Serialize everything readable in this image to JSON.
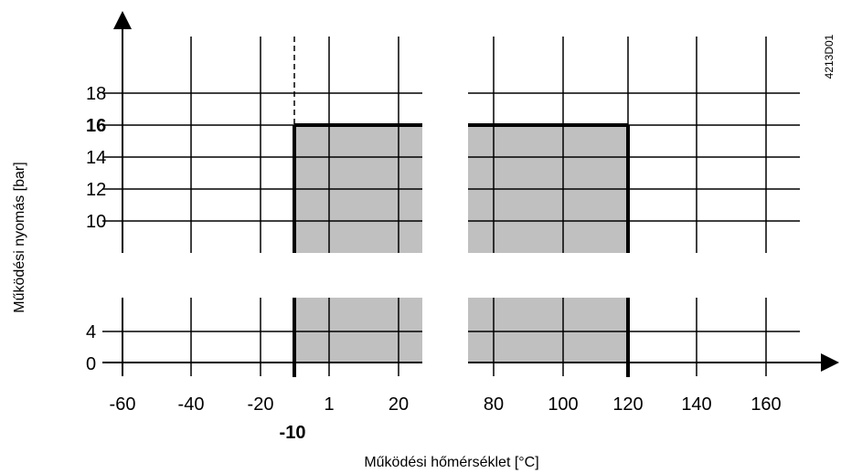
{
  "chart_data": {
    "type": "area",
    "xlabel": "Működési hőmérséklet [°C]",
    "ylabel": "Működési nyomás [bar]",
    "figure_code": "4213D01",
    "x_tick_labels": [
      "-60",
      "-40",
      "-20",
      "1",
      "20",
      "80",
      "100",
      "120",
      "140",
      "160"
    ],
    "x_tick_bold": "-10",
    "y_tick_labels": [
      "0",
      "4",
      "10",
      "12",
      "14",
      "16",
      "18"
    ],
    "y_tick_bold": "16",
    "xlim": [
      -70,
      170
    ],
    "ylim": [
      0,
      18
    ],
    "axis_breaks": {
      "x": [
        25,
        75
      ],
      "y": [
        5,
        9
      ]
    },
    "grid": true,
    "operating_region": {
      "temperature_min": -10,
      "temperature_max": 120,
      "pressure_max": 16,
      "fill_color": "#c0c0c0"
    }
  }
}
